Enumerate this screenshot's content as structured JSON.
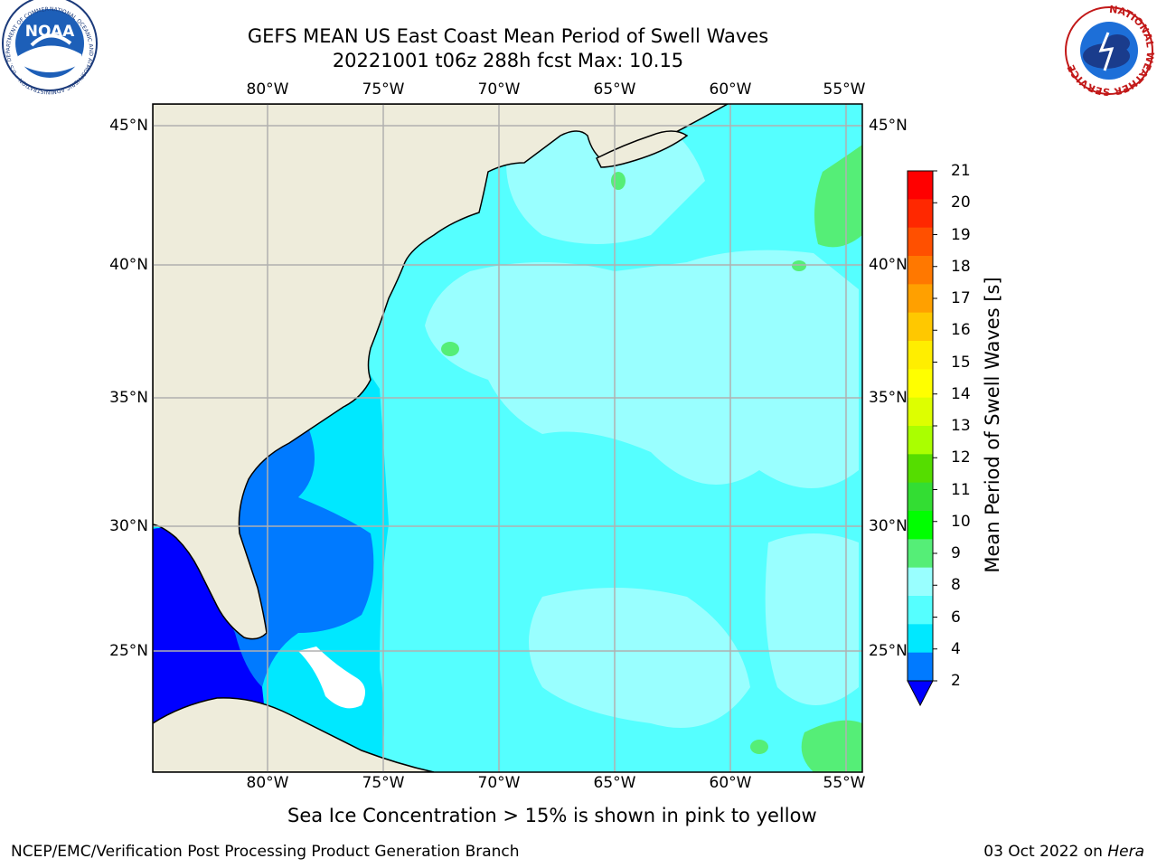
{
  "header": {
    "title_line1": "GEFS MEAN US East Coast Mean Period of Swell Waves",
    "title_line2": "20221001 t06z 288h fcst   Max: 10.15"
  },
  "map": {
    "lon_labels": [
      "80°W",
      "75°W",
      "70°W",
      "65°W",
      "60°W",
      "55°W"
    ],
    "lat_labels": [
      "45°N",
      "40°N",
      "35°N",
      "30°N",
      "25°N"
    ],
    "land_color": "#eeecdb",
    "gridline_color": "#b0b0b0"
  },
  "colorbar": {
    "title": "Mean Period of Swell Waves [s]",
    "ticks": [
      "21",
      "20",
      "19",
      "18",
      "17",
      "16",
      "15",
      "14",
      "13",
      "12",
      "11",
      "10",
      "9",
      "8",
      "6",
      "4",
      "2"
    ],
    "colors": [
      "#ff0000",
      "#ff2800",
      "#ff5000",
      "#ff7800",
      "#ffa000",
      "#ffc800",
      "#ffee00",
      "#ffff00",
      "#ddff00",
      "#aaff00",
      "#55dd00",
      "#33dd33",
      "#00ff00",
      "#55ee77",
      "#99ffff",
      "#55ffff",
      "#00e8ff",
      "#007aff",
      "#0000ff"
    ]
  },
  "notes": {
    "ice_note": "Sea Ice Concentration > 15% is shown in pink to yellow",
    "footer_left": "NCEP/EMC/Verification Post Processing Product Generation Branch",
    "footer_right_date": "03 Oct 2022 on ",
    "footer_right_host": "Hera"
  },
  "logos": {
    "noaa_text": "NOAA",
    "noaa_ring_text": "NATIONAL OCEANIC AND ATMOSPHERIC ADMINISTRATION • U.S. DEPARTMENT OF COMMERCE",
    "nws_ring_text": "NATIONAL WEATHER SERVICE"
  }
}
